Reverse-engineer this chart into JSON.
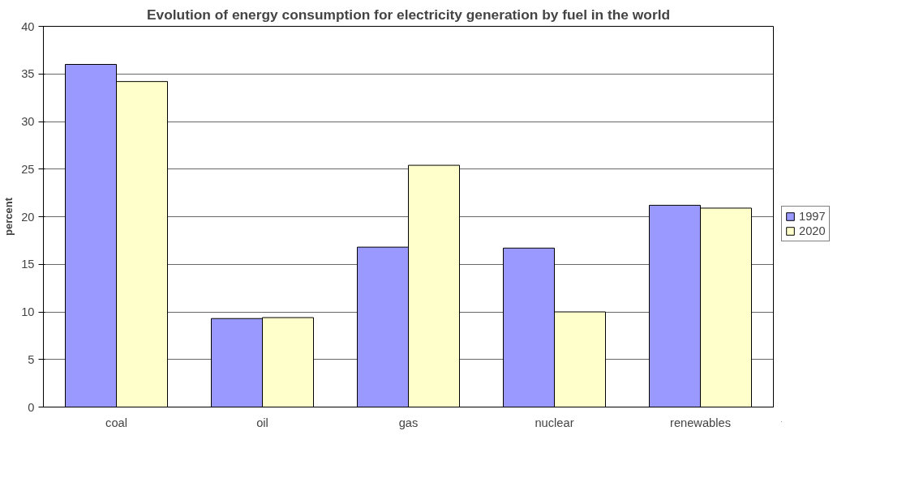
{
  "chart_data": {
    "type": "bar",
    "title": "Evolution of energy consumption for electricity generation by fuel in the world",
    "ylabel": "percent",
    "categories": [
      "coal",
      "oil",
      "gas",
      "nuclear",
      "renewables"
    ],
    "series": [
      {
        "name": "1997",
        "color": "#9999ff",
        "values": [
          36.0,
          9.3,
          16.8,
          16.7,
          21.2
        ]
      },
      {
        "name": "2020",
        "color": "#ffffcc",
        "values": [
          34.2,
          9.4,
          25.4,
          10.0,
          20.9
        ]
      }
    ],
    "ylim": [
      0,
      40
    ],
    "yticks": [
      0,
      5,
      10,
      15,
      20,
      25,
      30,
      35,
      40
    ],
    "grid": "y",
    "legend": "right"
  }
}
